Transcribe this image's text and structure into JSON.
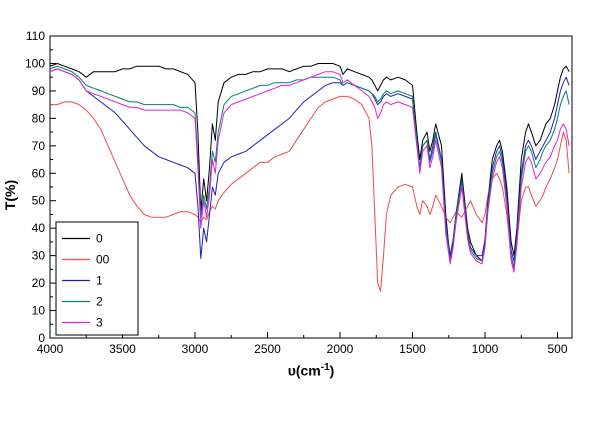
{
  "figure": {
    "background": "#ffffff",
    "frame_color": "#000000"
  },
  "chart_data": {
    "type": "line",
    "title": "",
    "ylabel": "T(%)",
    "xlabel_base": "υ(cm",
    "xlabel_sup": "-1",
    "xlabel_end": ")",
    "xlim": [
      4000,
      400
    ],
    "ylim": [
      0,
      110
    ],
    "x_ticks": [
      4000,
      3500,
      3000,
      2500,
      2000,
      1500,
      1000,
      500
    ],
    "x_minor_ticks": [
      3750,
      3250,
      2750,
      2250,
      1750,
      1250,
      750
    ],
    "y_ticks": [
      0,
      10,
      20,
      30,
      40,
      50,
      60,
      70,
      80,
      90,
      100,
      110
    ],
    "y_minor_ticks": [
      5,
      15,
      25,
      35,
      45,
      55,
      65,
      75,
      85,
      95,
      105
    ],
    "grid": false,
    "legend_position": "bottom-left",
    "x": [
      4000,
      3950,
      3900,
      3850,
      3800,
      3750,
      3700,
      3650,
      3600,
      3550,
      3500,
      3450,
      3400,
      3350,
      3300,
      3250,
      3200,
      3150,
      3100,
      3050,
      3000,
      2980,
      2960,
      2940,
      2920,
      2900,
      2880,
      2860,
      2840,
      2800,
      2750,
      2700,
      2650,
      2600,
      2550,
      2500,
      2450,
      2400,
      2350,
      2300,
      2250,
      2200,
      2150,
      2100,
      2050,
      2000,
      1980,
      1950,
      1900,
      1850,
      1800,
      1780,
      1760,
      1740,
      1720,
      1700,
      1680,
      1650,
      1600,
      1550,
      1500,
      1470,
      1450,
      1430,
      1400,
      1380,
      1360,
      1340,
      1300,
      1270,
      1240,
      1220,
      1200,
      1160,
      1120,
      1100,
      1060,
      1020,
      1000,
      980,
      950,
      920,
      900,
      880,
      850,
      820,
      800,
      780,
      750,
      720,
      700,
      680,
      650,
      620,
      600,
      580,
      550,
      520,
      500,
      480,
      460,
      440,
      420
    ],
    "series": [
      {
        "name": "0",
        "color": "#000000",
        "values": [
          99,
          100,
          99,
          98,
          97,
          95,
          97,
          97,
          97,
          97,
          98,
          98,
          99,
          99,
          99,
          99,
          98,
          98,
          97,
          96,
          93,
          75,
          46,
          58,
          50,
          62,
          78,
          72,
          86,
          93,
          95,
          96,
          96,
          97,
          97,
          98,
          98,
          98,
          97,
          98,
          99,
          99,
          100,
          100,
          100,
          99,
          96,
          98,
          97,
          96,
          95,
          94,
          92,
          90,
          92,
          94,
          95,
          94,
          95,
          94,
          92,
          75,
          65,
          72,
          75,
          68,
          72,
          78,
          70,
          45,
          28,
          35,
          45,
          60,
          40,
          35,
          30,
          28,
          35,
          50,
          65,
          70,
          72,
          68,
          55,
          35,
          30,
          40,
          65,
          75,
          78,
          75,
          70,
          72,
          75,
          78,
          80,
          85,
          90,
          95,
          98,
          99,
          97
        ]
      },
      {
        "name": "00",
        "color": "#f04a4a",
        "values": [
          85,
          85,
          86,
          86,
          85,
          83,
          80,
          76,
          70,
          64,
          58,
          52,
          48,
          45,
          44,
          44,
          44,
          45,
          46,
          46,
          45,
          44,
          42,
          44,
          43,
          46,
          48,
          47,
          50,
          53,
          56,
          58,
          60,
          62,
          64,
          64,
          66,
          67,
          68,
          72,
          76,
          80,
          84,
          86,
          87,
          88,
          88,
          88,
          87,
          85,
          80,
          70,
          45,
          20,
          17,
          30,
          45,
          52,
          55,
          56,
          55,
          48,
          45,
          50,
          48,
          45,
          48,
          52,
          48,
          44,
          42,
          44,
          46,
          44,
          48,
          50,
          45,
          42,
          45,
          52,
          58,
          60,
          58,
          55,
          45,
          30,
          25,
          35,
          50,
          55,
          55,
          52,
          48,
          50,
          52,
          55,
          58,
          62,
          65,
          70,
          75,
          72,
          60
        ]
      },
      {
        "name": "1",
        "color": "#2020b0",
        "values": [
          97,
          98,
          97,
          96,
          94,
          90,
          88,
          86,
          84,
          82,
          79,
          76,
          73,
          70,
          68,
          66,
          65,
          64,
          63,
          62,
          60,
          48,
          29,
          40,
          35,
          45,
          55,
          52,
          60,
          64,
          66,
          67,
          68,
          70,
          72,
          74,
          76,
          78,
          80,
          83,
          86,
          88,
          90,
          92,
          93,
          93,
          92,
          93,
          92,
          91,
          90,
          89,
          87,
          85,
          86,
          88,
          89,
          88,
          89,
          88,
          87,
          72,
          62,
          70,
          72,
          65,
          70,
          75,
          65,
          42,
          30,
          36,
          45,
          58,
          38,
          33,
          30,
          30,
          36,
          50,
          62,
          68,
          70,
          66,
          52,
          32,
          28,
          38,
          60,
          70,
          72,
          70,
          65,
          68,
          70,
          72,
          75,
          80,
          85,
          90,
          93,
          95,
          92
        ]
      },
      {
        "name": "2",
        "color": "#008070",
        "values": [
          98,
          99,
          98,
          97,
          95,
          92,
          91,
          90,
          89,
          88,
          87,
          86,
          86,
          85,
          85,
          85,
          85,
          85,
          84,
          84,
          82,
          65,
          44,
          52,
          47,
          55,
          68,
          64,
          75,
          85,
          88,
          89,
          90,
          91,
          92,
          92,
          93,
          93,
          93,
          94,
          94,
          95,
          95,
          95,
          95,
          94,
          92,
          93,
          92,
          91,
          90,
          89,
          88,
          86,
          87,
          89,
          90,
          89,
          90,
          89,
          88,
          72,
          62,
          70,
          72,
          64,
          68,
          74,
          64,
          40,
          28,
          34,
          44,
          57,
          37,
          32,
          29,
          28,
          34,
          48,
          60,
          66,
          68,
          64,
          50,
          30,
          26,
          36,
          58,
          68,
          70,
          68,
          62,
          65,
          68,
          70,
          72,
          76,
          80,
          85,
          88,
          90,
          85
        ]
      },
      {
        "name": "3",
        "color": "#e020e0",
        "values": [
          97,
          98,
          97,
          96,
          94,
          90,
          89,
          88,
          87,
          86,
          85,
          84,
          84,
          83,
          83,
          83,
          83,
          83,
          83,
          82,
          80,
          62,
          40,
          50,
          44,
          52,
          65,
          60,
          72,
          82,
          85,
          86,
          87,
          88,
          89,
          90,
          91,
          92,
          92,
          93,
          94,
          95,
          96,
          97,
          97,
          96,
          93,
          94,
          92,
          90,
          88,
          86,
          84,
          80,
          82,
          85,
          86,
          85,
          86,
          85,
          84,
          70,
          60,
          68,
          70,
          62,
          66,
          72,
          62,
          38,
          27,
          33,
          42,
          55,
          36,
          31,
          28,
          27,
          33,
          46,
          58,
          64,
          66,
          62,
          48,
          28,
          24,
          34,
          55,
          64,
          66,
          64,
          58,
          60,
          62,
          64,
          66,
          70,
          72,
          76,
          78,
          76,
          70
        ]
      }
    ]
  }
}
